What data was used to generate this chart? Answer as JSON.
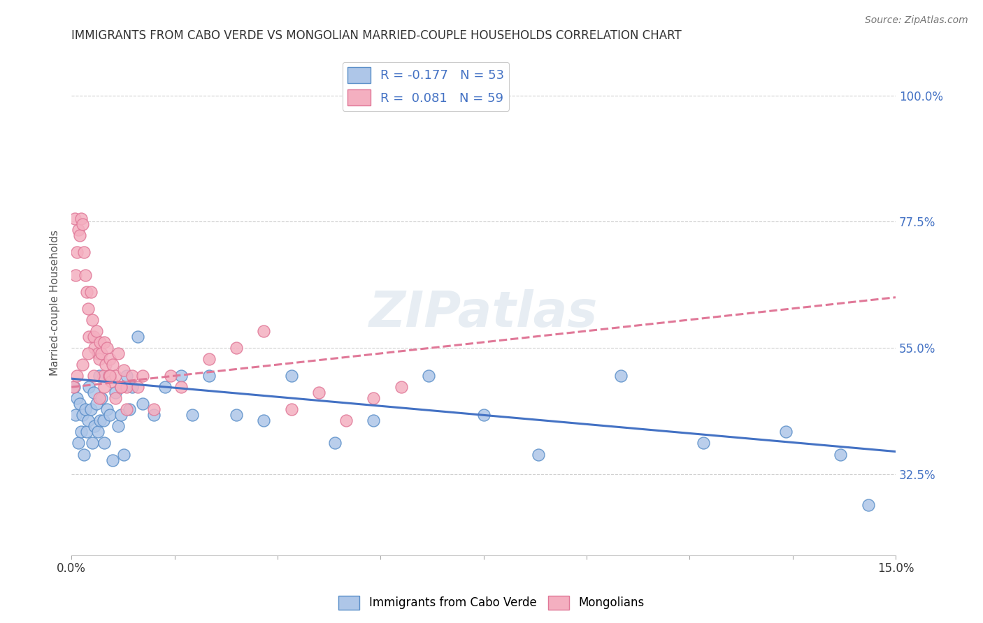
{
  "title": "IMMIGRANTS FROM CABO VERDE VS MONGOLIAN MARRIED-COUPLE HOUSEHOLDS CORRELATION CHART",
  "source": "Source: ZipAtlas.com",
  "ylabel": "Married-couple Households",
  "xmin": 0.0,
  "xmax": 15.0,
  "ymin": 18.0,
  "ymax": 108.0,
  "yticks": [
    32.5,
    55.0,
    77.5,
    100.0
  ],
  "ytick_labels": [
    "32.5%",
    "55.0%",
    "77.5%",
    "100.0%"
  ],
  "xticks": [
    0,
    1.875,
    3.75,
    5.625,
    7.5,
    9.375,
    11.25,
    13.125,
    15.0
  ],
  "color_blue": "#aec6e8",
  "color_pink": "#f4afc0",
  "color_blue_edge": "#5b8fc9",
  "color_pink_edge": "#e07898",
  "color_trendline_blue": "#4472c4",
  "color_trendline_pink": "#e07898",
  "color_grid": "#d0d0d0",
  "color_right_tick": "#4472c4",
  "legend_label1": "Immigrants from Cabo Verde",
  "legend_label2": "Mongolians",
  "legend_text1": "R = -0.177   N = 53",
  "legend_text2": "R =  0.081   N = 59",
  "blue_x": [
    0.05,
    0.08,
    0.1,
    0.12,
    0.15,
    0.18,
    0.2,
    0.22,
    0.25,
    0.28,
    0.3,
    0.32,
    0.35,
    0.38,
    0.4,
    0.42,
    0.45,
    0.48,
    0.5,
    0.52,
    0.55,
    0.58,
    0.6,
    0.65,
    0.7,
    0.75,
    0.8,
    0.85,
    0.9,
    0.95,
    1.0,
    1.05,
    1.1,
    1.2,
    1.3,
    1.5,
    1.7,
    2.0,
    2.2,
    2.5,
    3.0,
    3.5,
    4.0,
    4.8,
    5.5,
    6.5,
    7.5,
    8.5,
    10.0,
    11.5,
    13.0,
    14.0,
    14.5
  ],
  "blue_y": [
    48,
    43,
    46,
    38,
    45,
    40,
    43,
    36,
    44,
    40,
    42,
    48,
    44,
    38,
    47,
    41,
    45,
    40,
    50,
    42,
    46,
    42,
    38,
    44,
    43,
    35,
    47,
    41,
    43,
    36,
    50,
    44,
    48,
    57,
    45,
    43,
    48,
    50,
    43,
    50,
    43,
    42,
    50,
    38,
    42,
    50,
    43,
    36,
    50,
    38,
    40,
    36,
    27
  ],
  "pink_x": [
    0.03,
    0.06,
    0.08,
    0.1,
    0.12,
    0.15,
    0.18,
    0.2,
    0.22,
    0.25,
    0.28,
    0.3,
    0.32,
    0.35,
    0.38,
    0.4,
    0.42,
    0.45,
    0.48,
    0.5,
    0.52,
    0.55,
    0.58,
    0.6,
    0.62,
    0.65,
    0.68,
    0.7,
    0.72,
    0.75,
    0.8,
    0.85,
    0.9,
    0.95,
    1.0,
    1.1,
    1.2,
    1.3,
    1.5,
    1.8,
    2.0,
    2.5,
    3.0,
    3.5,
    4.0,
    4.5,
    5.0,
    5.5,
    6.0,
    0.1,
    0.2,
    0.3,
    0.4,
    0.5,
    0.6,
    0.7,
    0.8,
    0.9,
    1.0
  ],
  "pink_y": [
    48,
    78,
    68,
    72,
    76,
    75,
    78,
    77,
    72,
    68,
    65,
    62,
    57,
    65,
    60,
    57,
    55,
    58,
    54,
    53,
    56,
    54,
    50,
    56,
    52,
    55,
    50,
    53,
    49,
    52,
    50,
    54,
    48,
    51,
    48,
    50,
    48,
    50,
    44,
    50,
    48,
    53,
    55,
    58,
    44,
    47,
    42,
    46,
    48,
    50,
    52,
    54,
    50,
    46,
    48,
    50,
    46,
    48,
    44
  ],
  "blue_trend_x0": 0.0,
  "blue_trend_y0": 49.5,
  "blue_trend_x1": 15.0,
  "blue_trend_y1": 36.5,
  "pink_trend_x0": 0.0,
  "pink_trend_y0": 48.0,
  "pink_trend_x1": 15.0,
  "pink_trend_y1": 64.0
}
